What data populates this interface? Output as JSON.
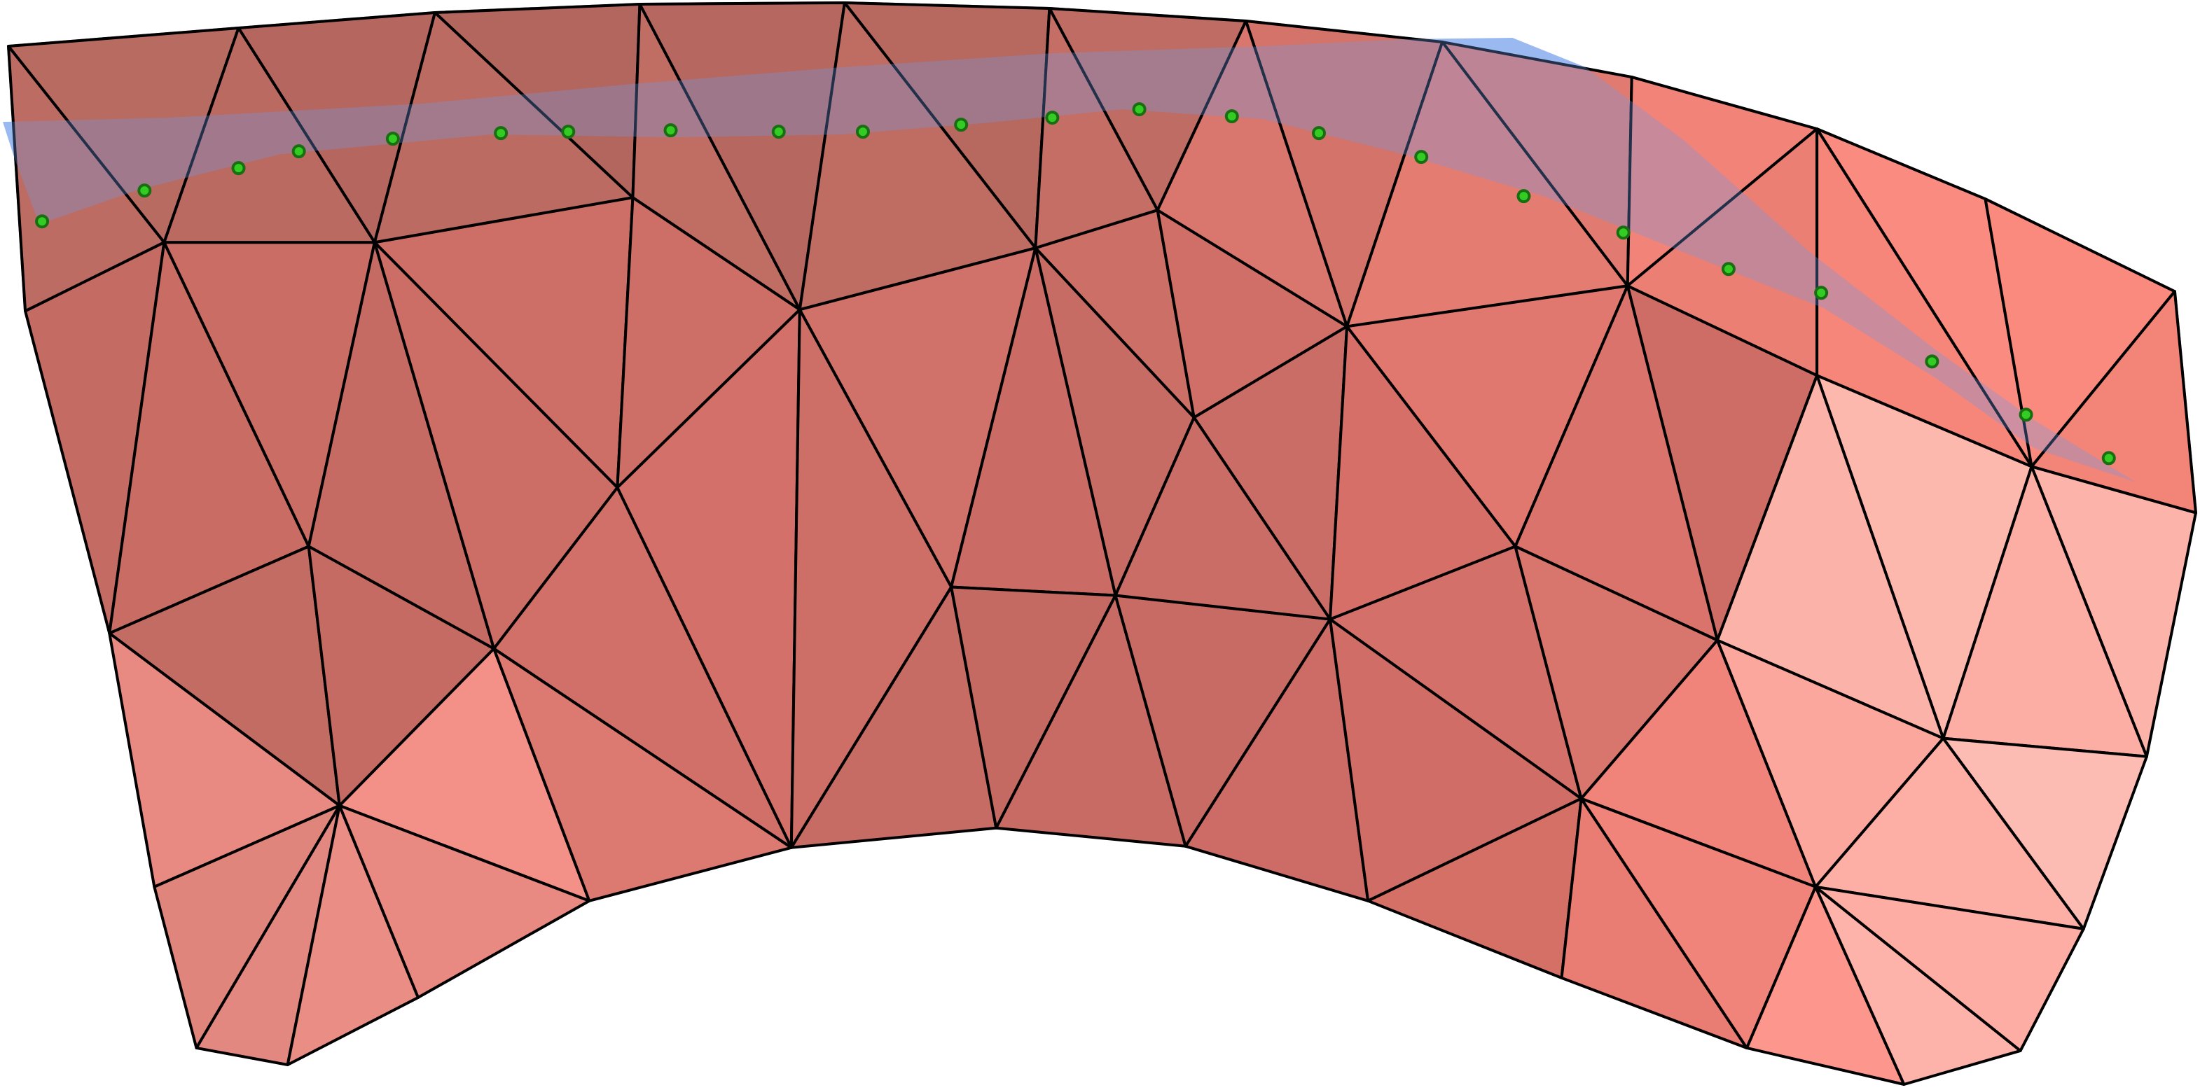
{
  "figure": {
    "type": "triangulated surface mesh with curve overlay",
    "mesh_color_dark": "#b8665e",
    "mesh_color_mid": "#d5736c",
    "mesh_color_light": "#fdb8ae",
    "edge_color": "#000000",
    "ribbon_color": "#6f9bea",
    "marker_color": "#33cc22",
    "marker_count": 24
  }
}
